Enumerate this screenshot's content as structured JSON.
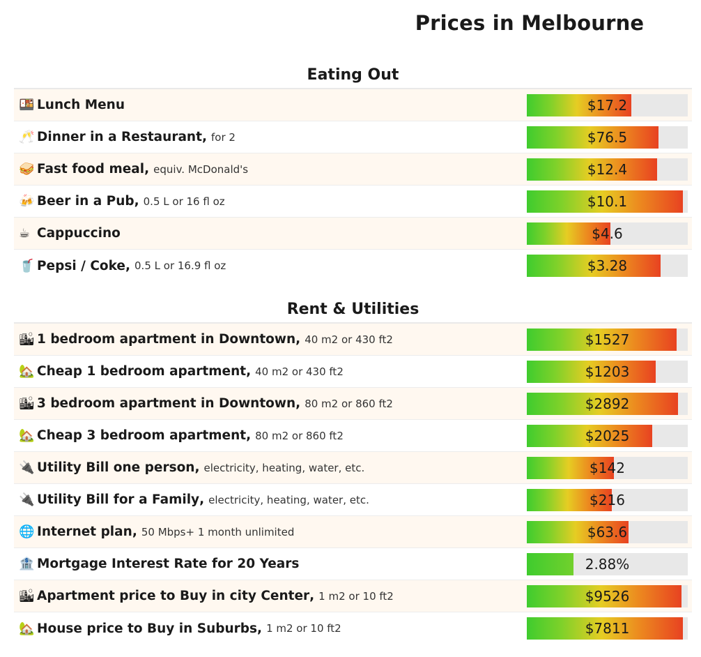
{
  "page": {
    "title": "Prices in Melbourne"
  },
  "colors": {
    "bar_low": "#3fcc2e",
    "bar_mid": "#e6cd23",
    "bar_high": "#e84221",
    "bar_track": "#e8e8e8",
    "row_alt": "#fff8f0"
  },
  "sections": [
    {
      "title": "Eating Out",
      "items": [
        {
          "icon": "bento-box-icon",
          "glyph": "🍱",
          "name": "Lunch Menu",
          "detail": "",
          "value": "$17.2",
          "fill_fraction": 0.65
        },
        {
          "icon": "champagne-glasses-icon",
          "glyph": "🥂",
          "name": "Dinner in a Restaurant",
          "detail": "for 2",
          "value": "$76.5",
          "fill_fraction": 0.82
        },
        {
          "icon": "sandwich-icon",
          "glyph": "🥪",
          "name": "Fast food meal",
          "detail": "equiv. McDonald's",
          "value": "$12.4",
          "fill_fraction": 0.81
        },
        {
          "icon": "beer-mugs-icon",
          "glyph": "🍻",
          "name": "Beer in a Pub",
          "detail": "0.5 L or 16 fl oz",
          "value": "$10.1",
          "fill_fraction": 0.97
        },
        {
          "icon": "coffee-cup-icon",
          "glyph": "☕",
          "name": "Cappuccino",
          "detail": "",
          "value": "$4.6",
          "fill_fraction": 0.52
        },
        {
          "icon": "soda-cup-icon",
          "glyph": "🥤",
          "name": "Pepsi / Coke",
          "detail": "0.5 L or 16.9 fl oz",
          "value": "$3.28",
          "fill_fraction": 0.83
        }
      ]
    },
    {
      "title": "Rent & Utilities",
      "items": [
        {
          "icon": "city-buildings-icon",
          "glyph": "🏙",
          "name": "1 bedroom apartment in Downtown",
          "detail": "40 m2 or 430 ft2",
          "value": "$1527",
          "fill_fraction": 0.93
        },
        {
          "icon": "house-garden-icon",
          "glyph": "🏡",
          "name": "Cheap 1 bedroom apartment",
          "detail": "40 m2 or 430 ft2",
          "value": "$1203",
          "fill_fraction": 0.8
        },
        {
          "icon": "city-buildings-icon",
          "glyph": "🏙",
          "name": "3 bedroom apartment in Downtown",
          "detail": "80 m2 or 860 ft2",
          "value": "$2892",
          "fill_fraction": 0.94
        },
        {
          "icon": "house-garden-icon",
          "glyph": "🏡",
          "name": "Cheap 3 bedroom apartment",
          "detail": "80 m2 or 860 ft2",
          "value": "$2025",
          "fill_fraction": 0.78
        },
        {
          "icon": "electric-plug-icon",
          "glyph": "🔌",
          "name": "Utility Bill one person",
          "detail": "electricity, heating, water, etc.",
          "value": "$142",
          "fill_fraction": 0.54
        },
        {
          "icon": "electric-plug-icon",
          "glyph": "🔌",
          "name": "Utility Bill for a Family",
          "detail": "electricity, heating, water, etc.",
          "value": "$216",
          "fill_fraction": 0.53
        },
        {
          "icon": "globe-icon",
          "glyph": "🌐",
          "name": "Internet plan",
          "detail": "50 Mbps+ 1 month unlimited",
          "value": "$63.6",
          "fill_fraction": 0.63
        },
        {
          "icon": "bank-icon",
          "glyph": "🏦",
          "name": "Mortgage Interest Rate for 20 Years",
          "detail": "",
          "value": "2.88%",
          "fill_fraction": 0.29,
          "short": true
        },
        {
          "icon": "city-buildings-icon",
          "glyph": "🏙",
          "name": "Apartment price to Buy in city Center",
          "detail": "1 m2 or 10 ft2",
          "value": "$9526",
          "fill_fraction": 0.96
        },
        {
          "icon": "house-garden-icon",
          "glyph": "🏡",
          "name": "House price to Buy in Suburbs",
          "detail": "1 m2 or 10 ft2",
          "value": "$7811",
          "fill_fraction": 0.97
        }
      ]
    }
  ]
}
